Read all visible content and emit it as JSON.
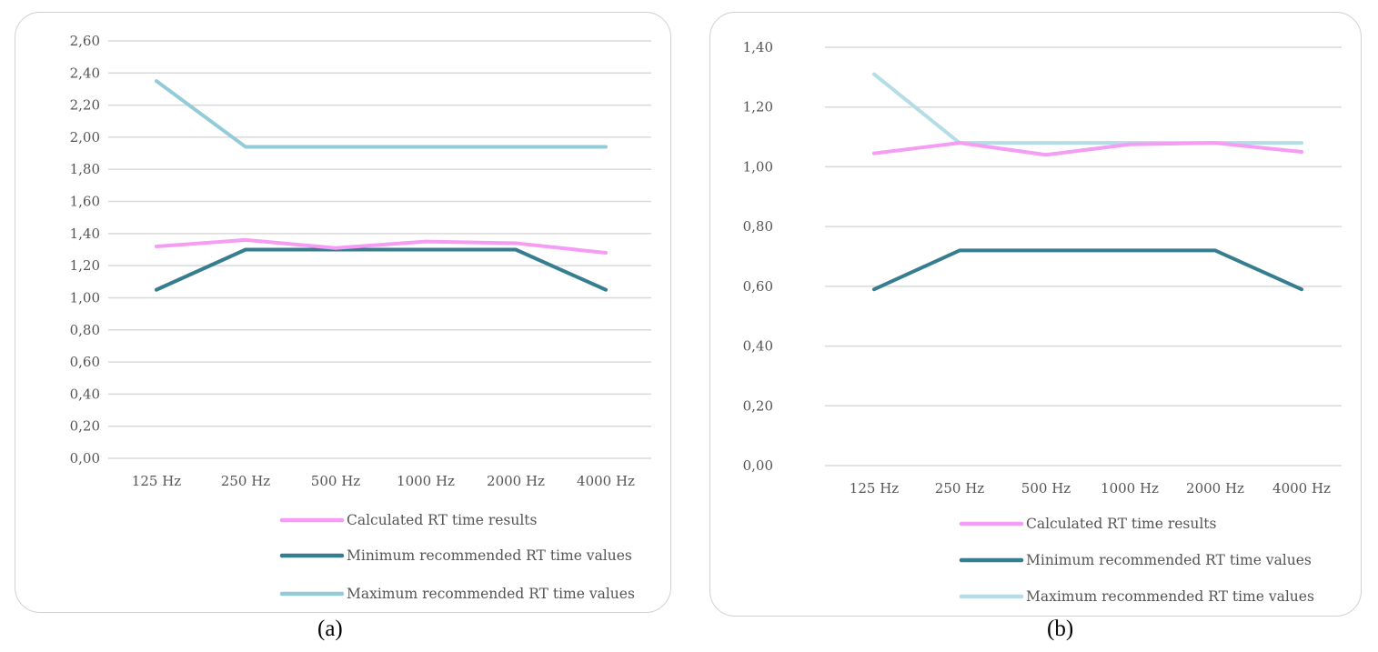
{
  "chart_data": [
    {
      "type": "line",
      "caption": "(a)",
      "categories": [
        "125 Hz",
        "250 Hz",
        "500 Hz",
        "1000 Hz",
        "2000 Hz",
        "4000 Hz"
      ],
      "yticks": [
        "0,00",
        "0,20",
        "0,40",
        "0,60",
        "0,80",
        "1,00",
        "1,20",
        "1,40",
        "1,60",
        "1,80",
        "2,00",
        "2,20",
        "2,40",
        "2,60"
      ],
      "ylim": [
        0,
        2.6
      ],
      "grid": true,
      "legend_position": "bottom",
      "series": [
        {
          "name": "Calculated RT time results",
          "color": "#f59cf5",
          "values": [
            1.32,
            1.36,
            1.31,
            1.35,
            1.34,
            1.28
          ]
        },
        {
          "name": "Minimum recommended RT time values",
          "color": "#367e8f",
          "values": [
            1.05,
            1.3,
            1.3,
            1.3,
            1.3,
            1.05
          ]
        },
        {
          "name": "Maximum recommended RT time values",
          "color": "#94cbd8",
          "values": [
            2.35,
            1.94,
            1.94,
            1.94,
            1.94,
            1.94
          ]
        }
      ]
    },
    {
      "type": "line",
      "caption": "(b)",
      "categories": [
        "125 Hz",
        "250 Hz",
        "500 Hz",
        "1000 Hz",
        "2000 Hz",
        "4000 Hz"
      ],
      "yticks": [
        "0,00",
        "0,20",
        "0,40",
        "0,60",
        "0,80",
        "1,00",
        "1,20",
        "1,40"
      ],
      "ylim": [
        0,
        1.4
      ],
      "grid": true,
      "legend_position": "bottom",
      "series": [
        {
          "name": "Calculated RT time results",
          "color": "#f59cf5",
          "values": [
            1.045,
            1.08,
            1.04,
            1.075,
            1.08,
            1.05
          ]
        },
        {
          "name": "Minimum recommended RT time values",
          "color": "#367e8f",
          "values": [
            0.59,
            0.72,
            0.72,
            0.72,
            0.72,
            0.59
          ]
        },
        {
          "name": "Maximum recommended RT time values",
          "color": "#b5dde6",
          "values": [
            1.31,
            1.08,
            1.08,
            1.08,
            1.08,
            1.08
          ]
        }
      ]
    }
  ]
}
